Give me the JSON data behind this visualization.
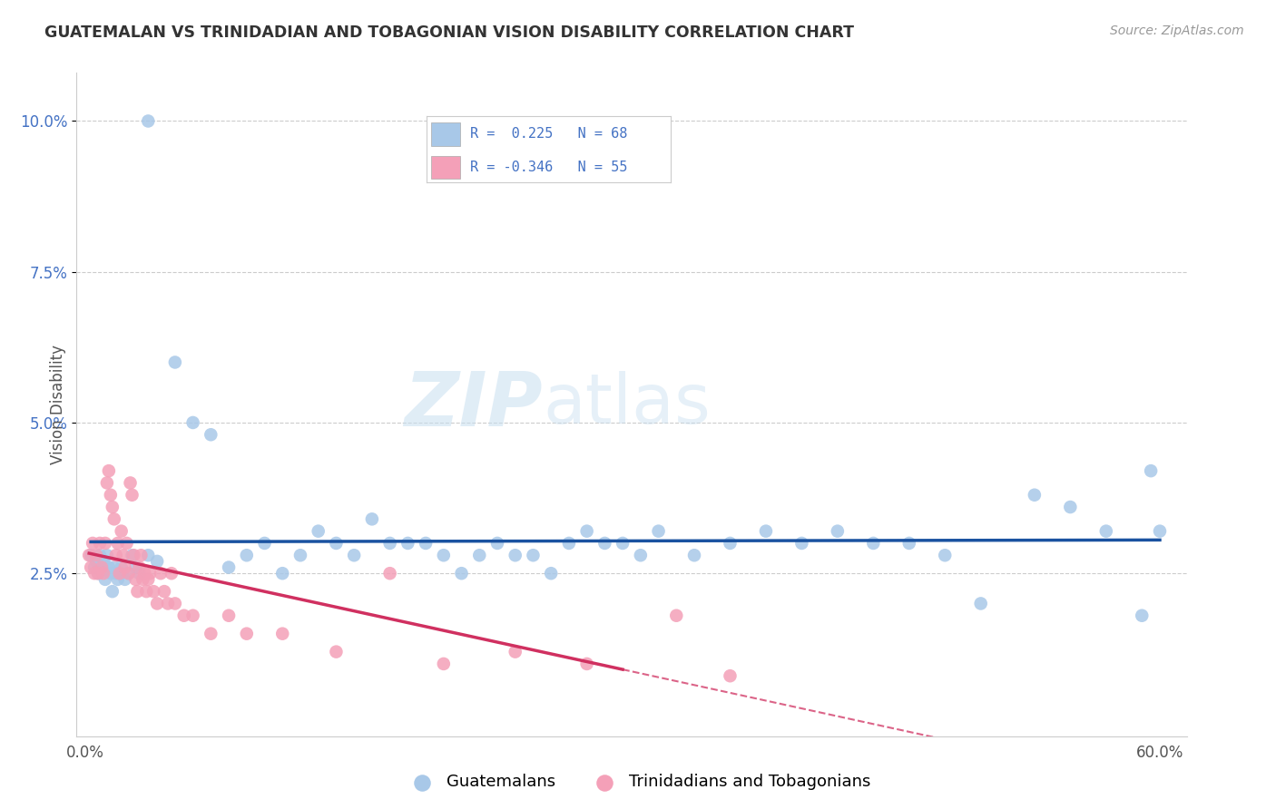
{
  "title": "GUATEMALAN VS TRINIDADIAN AND TOBAGONIAN VISION DISABILITY CORRELATION CHART",
  "source": "Source: ZipAtlas.com",
  "ylabel": "Vision Disability",
  "xlim": [
    -0.005,
    0.615
  ],
  "ylim": [
    -0.002,
    0.108
  ],
  "xticks": [
    0.0,
    0.1,
    0.2,
    0.3,
    0.4,
    0.5,
    0.6
  ],
  "xticklabels": [
    "0.0%",
    "",
    "",
    "",
    "",
    "",
    "60.0%"
  ],
  "yticks": [
    0.025,
    0.05,
    0.075,
    0.1
  ],
  "yticklabels": [
    "2.5%",
    "5.0%",
    "7.5%",
    "10.0%"
  ],
  "legend_label1": "Guatemalans",
  "legend_label2": "Trinidadians and Tobagonians",
  "r1": 0.225,
  "n1": 68,
  "r2": -0.346,
  "n2": 55,
  "color_blue": "#A8C8E8",
  "color_pink": "#F4A0B8",
  "trend_blue": "#1A52A0",
  "trend_pink": "#D03060",
  "watermark_zip": "ZIP",
  "watermark_atlas": "atlas",
  "blue_x": [
    0.003,
    0.005,
    0.006,
    0.007,
    0.008,
    0.009,
    0.01,
    0.011,
    0.012,
    0.013,
    0.014,
    0.015,
    0.016,
    0.017,
    0.018,
    0.019,
    0.02,
    0.022,
    0.024,
    0.026,
    0.028,
    0.03,
    0.035,
    0.04,
    0.05,
    0.06,
    0.07,
    0.08,
    0.09,
    0.1,
    0.11,
    0.12,
    0.13,
    0.14,
    0.15,
    0.16,
    0.17,
    0.18,
    0.19,
    0.2,
    0.21,
    0.22,
    0.23,
    0.24,
    0.25,
    0.26,
    0.27,
    0.28,
    0.29,
    0.3,
    0.31,
    0.32,
    0.34,
    0.36,
    0.38,
    0.4,
    0.42,
    0.44,
    0.46,
    0.48,
    0.5,
    0.53,
    0.55,
    0.57,
    0.59,
    0.6,
    0.035,
    0.595
  ],
  "blue_y": [
    0.028,
    0.026,
    0.027,
    0.025,
    0.028,
    0.026,
    0.027,
    0.024,
    0.028,
    0.026,
    0.025,
    0.022,
    0.026,
    0.025,
    0.024,
    0.025,
    0.026,
    0.024,
    0.025,
    0.028,
    0.026,
    0.025,
    0.028,
    0.027,
    0.06,
    0.05,
    0.048,
    0.026,
    0.028,
    0.03,
    0.025,
    0.028,
    0.032,
    0.03,
    0.028,
    0.034,
    0.03,
    0.03,
    0.03,
    0.028,
    0.025,
    0.028,
    0.03,
    0.028,
    0.028,
    0.025,
    0.03,
    0.032,
    0.03,
    0.03,
    0.028,
    0.032,
    0.028,
    0.03,
    0.032,
    0.03,
    0.032,
    0.03,
    0.03,
    0.028,
    0.02,
    0.038,
    0.036,
    0.032,
    0.018,
    0.032,
    0.1,
    0.042
  ],
  "pink_x": [
    0.002,
    0.003,
    0.004,
    0.005,
    0.006,
    0.007,
    0.008,
    0.009,
    0.01,
    0.011,
    0.012,
    0.013,
    0.014,
    0.015,
    0.016,
    0.017,
    0.018,
    0.019,
    0.02,
    0.021,
    0.022,
    0.023,
    0.024,
    0.025,
    0.026,
    0.027,
    0.028,
    0.029,
    0.03,
    0.031,
    0.032,
    0.033,
    0.034,
    0.035,
    0.036,
    0.038,
    0.04,
    0.042,
    0.044,
    0.046,
    0.048,
    0.05,
    0.055,
    0.06,
    0.07,
    0.08,
    0.09,
    0.11,
    0.14,
    0.17,
    0.2,
    0.24,
    0.28,
    0.33,
    0.36
  ],
  "pink_y": [
    0.028,
    0.026,
    0.03,
    0.025,
    0.028,
    0.025,
    0.03,
    0.026,
    0.025,
    0.03,
    0.04,
    0.042,
    0.038,
    0.036,
    0.034,
    0.028,
    0.03,
    0.025,
    0.032,
    0.028,
    0.026,
    0.03,
    0.025,
    0.04,
    0.038,
    0.028,
    0.024,
    0.022,
    0.026,
    0.028,
    0.024,
    0.025,
    0.022,
    0.024,
    0.025,
    0.022,
    0.02,
    0.025,
    0.022,
    0.02,
    0.025,
    0.02,
    0.018,
    0.018,
    0.015,
    0.018,
    0.015,
    0.015,
    0.012,
    0.025,
    0.01,
    0.012,
    0.01,
    0.018,
    0.008
  ]
}
